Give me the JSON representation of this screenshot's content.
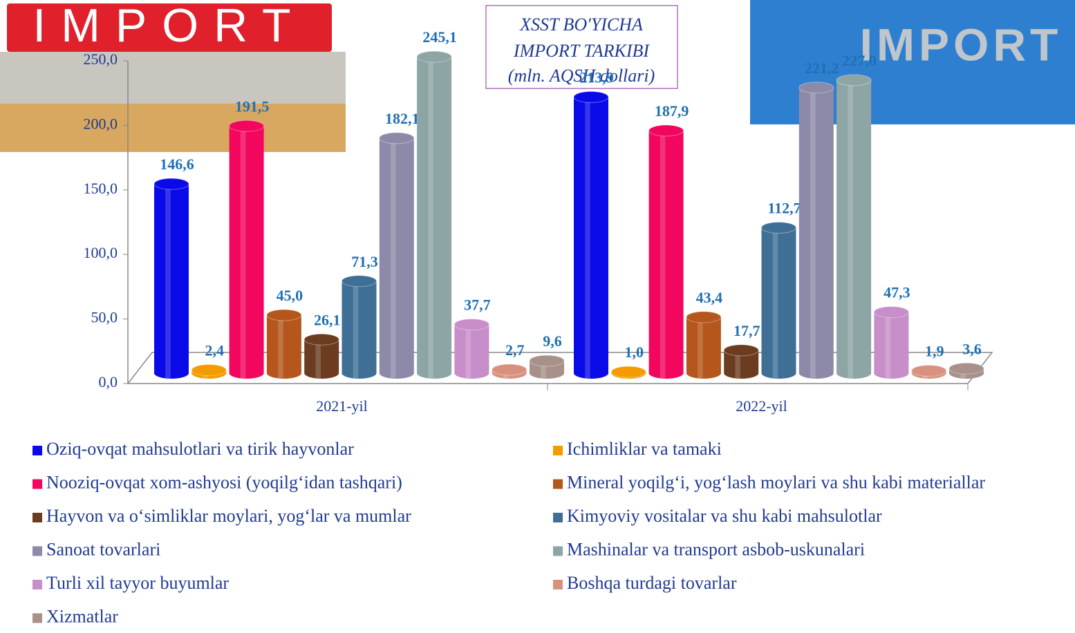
{
  "chart_data": {
    "type": "bar",
    "title": [
      "XSST BO'YICHA",
      "IMPORT TARKIBI",
      "(mln. AQSH dollari)"
    ],
    "categories": [
      "2021-yil",
      "2022-yil"
    ],
    "ylim": [
      0,
      250
    ],
    "yticks": [
      {
        "value": 0,
        "label": "0,0"
      },
      {
        "value": 50,
        "label": "50,0"
      },
      {
        "value": 100,
        "label": "100,0"
      },
      {
        "value": 150,
        "label": "150,0"
      },
      {
        "value": 200,
        "label": "200,0"
      },
      {
        "value": 250,
        "label": "250,0"
      }
    ],
    "legend": "bottom",
    "series": [
      {
        "name": "Oziq-ovqat mahsulotlari va tirik hayvonlar",
        "color": "#0a0ae8",
        "values": [
          146.6,
          213.9
        ],
        "value_labels": [
          "146,6",
          "213,9"
        ]
      },
      {
        "name": "Ichimliklar va tamaki",
        "color": "#f39c00",
        "values": [
          2.4,
          1.0
        ],
        "value_labels": [
          "2,4",
          "1,0"
        ]
      },
      {
        "name": "Nooziq-ovqat xom-ashyosi (yoqilg‘idan tashqari)",
        "color": "#f2065e",
        "values": [
          191.5,
          187.9
        ],
        "value_labels": [
          "191,5",
          "187,9"
        ]
      },
      {
        "name": "Mineral yoqilg‘i, yog‘lash moylari va shu kabi materiallar",
        "color": "#b5571c",
        "values": [
          45.0,
          43.4
        ],
        "value_labels": [
          "45,0",
          "43,4"
        ]
      },
      {
        "name": "Hayvon va o‘simliklar moylari, yog‘lar va mumlar",
        "color": "#6b3c20",
        "values": [
          26.1,
          17.7
        ],
        "value_labels": [
          "26,1",
          "17,7"
        ]
      },
      {
        "name": "Kimyoviy vositalar va shu kabi mahsulotlar",
        "color": "#3f6f95",
        "values": [
          71.3,
          112.7
        ],
        "value_labels": [
          "71,3",
          "112,7"
        ]
      },
      {
        "name": "Sanoat tovarlari",
        "color": "#8d8aa9",
        "values": [
          182.1,
          221.2
        ],
        "value_labels": [
          "182,1",
          "221,2"
        ]
      },
      {
        "name": "Mashinalar va transport asbob-uskunalari",
        "color": "#8ea5a5",
        "values": [
          245.1,
          227.0
        ],
        "value_labels": [
          "245,1",
          "227,0"
        ]
      },
      {
        "name": "Turli xil tayyor buyumlar",
        "color": "#c78ec9",
        "values": [
          37.7,
          47.3
        ],
        "value_labels": [
          "37,7",
          "47,3"
        ]
      },
      {
        "name": "Boshqa turdagi tovarlar",
        "color": "#d9917f",
        "values": [
          2.7,
          1.9
        ],
        "value_labels": [
          "2,7",
          "1,9"
        ]
      },
      {
        "name": "Xizmatlar",
        "color": "#a8918a",
        "values": [
          9.6,
          3.6
        ],
        "value_labels": [
          "9,6",
          "3,6"
        ]
      }
    ]
  },
  "images": [
    {
      "text": "IMPORT"
    },
    {
      "text": "IMPORT"
    }
  ]
}
